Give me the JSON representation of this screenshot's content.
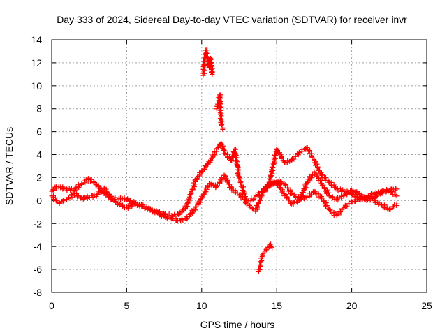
{
  "chart_data": {
    "type": "scatter",
    "title": "Day 333 of 2024, Sidereal Day-to-day VTEC variation (SDTVAR) for receiver invr",
    "xlabel": "GPS time / hours",
    "ylabel": "SDTVAR / TECUs",
    "xlim": [
      0,
      25
    ],
    "ylim": [
      -8,
      14
    ],
    "xticks": [
      0,
      5,
      10,
      15,
      20,
      25
    ],
    "yticks": [
      -8,
      -6,
      -4,
      -2,
      0,
      2,
      4,
      6,
      8,
      10,
      12,
      14
    ],
    "grid": true,
    "marker": "+",
    "color": "#ff0000",
    "series": [
      {
        "name": "track-a",
        "x": [
          0.0,
          0.3,
          0.6,
          1.0,
          1.5,
          2.0,
          2.5,
          3.0,
          3.5,
          4.0,
          4.5,
          5.0,
          5.5,
          6.0,
          6.5,
          7.0,
          7.5,
          8.0,
          8.5,
          9.0,
          9.3,
          9.6,
          10.0,
          10.3,
          10.6,
          11.0,
          11.3,
          11.6,
          12.0,
          12.2,
          12.5,
          12.8,
          13.0,
          13.3,
          13.6,
          14.0,
          14.5,
          15.0,
          15.5,
          16.0,
          16.5,
          17.0,
          17.5,
          18.0,
          18.5,
          19.0,
          19.5,
          20.0,
          20.5,
          21.0,
          21.5,
          22.0,
          22.5,
          23.0
        ],
        "y": [
          0.8,
          1.2,
          1.1,
          1.0,
          0.9,
          1.5,
          1.9,
          1.4,
          0.6,
          0.1,
          0.2,
          0.1,
          -0.2,
          -0.5,
          -0.8,
          -1.0,
          -1.2,
          -1.3,
          -1.2,
          -0.5,
          0.6,
          1.8,
          2.5,
          3.0,
          3.5,
          4.5,
          5.0,
          4.0,
          3.5,
          4.5,
          2.0,
          0.8,
          -0.3,
          -0.6,
          -0.9,
          0.5,
          1.5,
          4.5,
          3.3,
          3.5,
          4.2,
          4.6,
          3.5,
          2.2,
          1.6,
          1.0,
          0.8,
          0.6,
          0.2,
          0.3,
          0.6,
          0.7,
          0.9,
          1.0
        ]
      },
      {
        "name": "track-b",
        "x": [
          0.0,
          0.5,
          1.0,
          1.5,
          2.0,
          2.5,
          3.0,
          3.5,
          4.0,
          4.5,
          5.0,
          5.5,
          6.0,
          6.5,
          7.0,
          7.5,
          8.0,
          8.5,
          9.0,
          9.5,
          10.0,
          10.5,
          11.0,
          11.5,
          12.0,
          12.5,
          13.0,
          13.5,
          14.0,
          14.5,
          15.0,
          15.5,
          16.0,
          16.5,
          17.0,
          17.5,
          18.0,
          18.5,
          19.0,
          19.5,
          20.0,
          20.5,
          21.0,
          21.5,
          22.0,
          22.5,
          23.0
        ],
        "y": [
          0.4,
          -0.2,
          0.1,
          0.6,
          0.2,
          0.3,
          0.5,
          1.1,
          0.2,
          -0.4,
          -0.6,
          -0.3,
          -0.4,
          -0.7,
          -1.0,
          -1.4,
          -1.6,
          -1.7,
          -1.6,
          -0.8,
          0.2,
          1.5,
          1.2,
          2.2,
          1.0,
          0.5,
          -0.1,
          0.2,
          0.8,
          1.3,
          1.7,
          1.5,
          0.6,
          0.2,
          0.3,
          0.8,
          0.2,
          -0.8,
          -1.3,
          -0.6,
          -0.1,
          0.1,
          0.3,
          0.0,
          -0.4,
          -0.8,
          -0.3
        ]
      },
      {
        "name": "track-c",
        "x": [
          14.0,
          14.5,
          15.0,
          15.5,
          16.0,
          16.5,
          17.0,
          17.5,
          18.0,
          18.5,
          19.0,
          19.5,
          20.0,
          20.5,
          21.0,
          21.5,
          22.0,
          22.5,
          23.0
        ],
        "y": [
          0.8,
          1.4,
          1.6,
          0.6,
          -0.3,
          0.0,
          1.5,
          2.5,
          1.5,
          0.4,
          0.1,
          0.5,
          0.9,
          0.6,
          0.0,
          0.3,
          0.8,
          0.9,
          0.4
        ]
      },
      {
        "name": "spike-a",
        "x": [
          10.1,
          10.2,
          10.3,
          10.4,
          10.5,
          10.6,
          10.7
        ],
        "y": [
          10.9,
          12.5,
          13.1,
          12.3,
          11.6,
          12.4,
          11.0
        ]
      },
      {
        "name": "spike-b",
        "x": [
          11.0,
          11.1,
          11.2,
          11.3,
          11.4
        ],
        "y": [
          8.0,
          8.4,
          9.2,
          7.0,
          6.2
        ]
      },
      {
        "name": "negative-excursion",
        "x": [
          13.8,
          13.9,
          14.0,
          14.1,
          14.2,
          14.3,
          14.4,
          14.5,
          14.6,
          14.7
        ],
        "y": [
          -6.2,
          -5.6,
          -5.0,
          -4.6,
          -4.4,
          -4.3,
          -4.1,
          -4.0,
          -3.8,
          -4.1
        ]
      }
    ]
  }
}
